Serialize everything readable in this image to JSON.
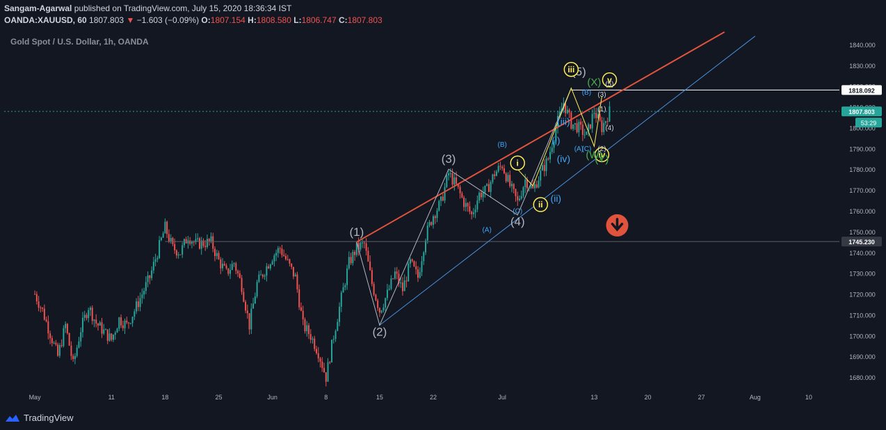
{
  "header": {
    "author": "Sangam-Agarwal",
    "published_text": "published on TradingView.com, July 15, 2020 18:36:34 IST",
    "symbol": "OANDA:XAUUSD, 60",
    "last": "1807.803",
    "change": "−1.603 (−0.09%)",
    "o_label": "O:",
    "o": "1807.154",
    "h_label": "H:",
    "h": "1808.580",
    "l_label": "L:",
    "l": "1806.747",
    "c_label": "C:",
    "c": "1807.803"
  },
  "subtitle": "Gold Spot / U.S. Dollar, 1h, OANDA",
  "brand": "TradingView",
  "colors": {
    "background": "#131722",
    "up": "#26a69a",
    "down": "#ef5350",
    "resistance": "#e0533d",
    "support": "#4a90d9",
    "wave_yellow": "#ffee58",
    "wave_blue": "#42a5f5",
    "wave_green": "#4caf50",
    "wave_gray": "#b2b5be"
  },
  "chart_data": {
    "type": "candlestick",
    "title": "Gold Spot / U.S. Dollar, 1h, OANDA",
    "y_ticks": [
      "1680.000",
      "1690.000",
      "1700.000",
      "1710.000",
      "1720.000",
      "1730.000",
      "1740.000",
      "1750.000",
      "1760.000",
      "1770.000",
      "1780.000",
      "1790.000",
      "1800.000",
      "1810.000",
      "1820.000",
      "1830.000",
      "1840.000"
    ],
    "ylim": [
      1674,
      1848
    ],
    "x_ticks": [
      {
        "label": "May",
        "date": "2020-05-01"
      },
      {
        "label": "11",
        "date": "2020-05-11"
      },
      {
        "label": "18",
        "date": "2020-05-18"
      },
      {
        "label": "25",
        "date": "2020-05-25"
      },
      {
        "label": "Jun",
        "date": "2020-06-01"
      },
      {
        "label": "8",
        "date": "2020-06-08"
      },
      {
        "label": "15",
        "date": "2020-06-15"
      },
      {
        "label": "22",
        "date": "2020-06-22"
      },
      {
        "label": "Jul",
        "date": "2020-07-01"
      },
      {
        "label": "13",
        "date": "2020-07-13"
      },
      {
        "label": "20",
        "date": "2020-07-20"
      },
      {
        "label": "27",
        "date": "2020-07-27"
      },
      {
        "label": "Aug",
        "date": "2020-08-03"
      },
      {
        "label": "10",
        "date": "2020-08-10"
      }
    ],
    "price_path": [
      [
        "2020-05-01",
        1720
      ],
      [
        "2020-05-02",
        1712
      ],
      [
        "2020-05-04",
        1690
      ],
      [
        "2020-05-05",
        1705
      ],
      [
        "2020-05-06",
        1686
      ],
      [
        "2020-05-07",
        1703
      ],
      [
        "2020-05-08",
        1714
      ],
      [
        "2020-05-09",
        1706
      ],
      [
        "2020-05-11",
        1698
      ],
      [
        "2020-05-12",
        1708
      ],
      [
        "2020-05-13",
        1705
      ],
      [
        "2020-05-14",
        1712
      ],
      [
        "2020-05-15",
        1720
      ],
      [
        "2020-05-16",
        1728
      ],
      [
        "2020-05-18",
        1752
      ],
      [
        "2020-05-19",
        1742
      ],
      [
        "2020-05-20",
        1740
      ],
      [
        "2020-05-21",
        1748
      ],
      [
        "2020-05-22",
        1744
      ],
      [
        "2020-05-24",
        1745
      ],
      [
        "2020-05-25",
        1736
      ],
      [
        "2020-05-26",
        1730
      ],
      [
        "2020-05-27",
        1735
      ],
      [
        "2020-05-28",
        1724
      ],
      [
        "2020-05-29",
        1705
      ],
      [
        "2020-05-30",
        1725
      ],
      [
        "2020-06-01",
        1738
      ],
      [
        "2020-06-02",
        1742
      ],
      [
        "2020-06-03",
        1735
      ],
      [
        "2020-06-04",
        1728
      ],
      [
        "2020-06-05",
        1705
      ],
      [
        "2020-06-06",
        1700
      ],
      [
        "2020-06-07",
        1692
      ],
      [
        "2020-06-08",
        1680
      ],
      [
        "2020-06-09",
        1700
      ],
      [
        "2020-06-10",
        1718
      ],
      [
        "2020-06-11",
        1735
      ],
      [
        "2020-06-12",
        1742
      ],
      [
        "2020-06-13",
        1744
      ],
      [
        "2020-06-14",
        1725
      ],
      [
        "2020-06-15",
        1712
      ],
      [
        "2020-06-16",
        1720
      ],
      [
        "2020-06-17",
        1730
      ],
      [
        "2020-06-18",
        1722
      ],
      [
        "2020-06-19",
        1735
      ],
      [
        "2020-06-20",
        1728
      ],
      [
        "2020-06-21",
        1748
      ],
      [
        "2020-06-22",
        1758
      ],
      [
        "2020-06-23",
        1764
      ],
      [
        "2020-06-24",
        1778
      ],
      [
        "2020-06-25",
        1772
      ],
      [
        "2020-06-26",
        1764
      ],
      [
        "2020-06-27",
        1758
      ],
      [
        "2020-06-28",
        1768
      ],
      [
        "2020-06-29",
        1770
      ],
      [
        "2020-06-30",
        1778
      ],
      [
        "2020-07-01",
        1782
      ],
      [
        "2020-07-02",
        1772
      ],
      [
        "2020-07-03",
        1764
      ],
      [
        "2020-07-04",
        1775
      ],
      [
        "2020-07-05",
        1770
      ],
      [
        "2020-07-06",
        1778
      ],
      [
        "2020-07-07",
        1785
      ],
      [
        "2020-07-08",
        1800
      ],
      [
        "2020-07-09",
        1812
      ],
      [
        "2020-07-10",
        1802
      ],
      [
        "2020-07-11",
        1800
      ],
      [
        "2020-07-12",
        1796
      ],
      [
        "2020-07-13",
        1808
      ],
      [
        "2020-07-14",
        1800
      ],
      [
        "2020-07-15",
        1807.8
      ]
    ],
    "horizontal_levels": [
      {
        "label": "1818.092",
        "value": 1818.092
      },
      {
        "label": "1807.803",
        "value": 1807.803
      },
      {
        "label": "1745.230",
        "value": 1745.23
      }
    ],
    "countdown": "53:29",
    "lines": [
      {
        "name": "resistance",
        "from": [
          "2020-06-12",
          1745
        ],
        "to": [
          "2020-07-30",
          1846
        ]
      },
      {
        "name": "support",
        "from": [
          "2020-06-15",
          1705
        ],
        "to": [
          "2020-08-03",
          1844
        ]
      }
    ],
    "wave_paths": [
      {
        "color": "wave_gray",
        "points": [
          [
            "2020-06-12",
            1745
          ],
          [
            "2020-06-15",
            1705
          ],
          [
            "2020-06-24",
            1780
          ],
          [
            "2020-07-03",
            1758
          ],
          [
            "2020-07-10",
            1819
          ]
        ]
      },
      {
        "color": "wave_yellow",
        "points": [
          [
            "2020-07-03",
            1780
          ],
          [
            "2020-07-05",
            1772
          ],
          [
            "2020-07-10",
            1819
          ],
          [
            "2020-07-13",
            1791
          ],
          [
            "2020-07-14",
            1815
          ]
        ]
      }
    ],
    "wave_labels": [
      {
        "text": "(1)",
        "at": [
          "2020-06-12",
          1750
        ],
        "style": "gray"
      },
      {
        "text": "(2)",
        "at": [
          "2020-06-15",
          1702
        ],
        "style": "gray"
      },
      {
        "text": "(3)",
        "at": [
          "2020-06-24",
          1785
        ],
        "style": "gray"
      },
      {
        "text": "(4)",
        "at": [
          "2020-07-03",
          1755
        ],
        "style": "gray"
      },
      {
        "text": "(5)",
        "at": [
          "2020-07-11",
          1827
        ],
        "style": "gray"
      },
      {
        "text": "(A)",
        "at": [
          "2020-06-29",
          1751
        ],
        "style": "blue-small"
      },
      {
        "text": "(B)",
        "at": [
          "2020-07-01",
          1792
        ],
        "style": "blue-small"
      },
      {
        "text": "(C)",
        "at": [
          "2020-07-03",
          1760
        ],
        "style": "blue-small"
      },
      {
        "text": "i",
        "at": [
          "2020-07-03",
          1783
        ],
        "style": "yellow-circle"
      },
      {
        "text": "ii",
        "at": [
          "2020-07-06",
          1763
        ],
        "style": "yellow-circle"
      },
      {
        "text": "iii",
        "at": [
          "2020-07-10",
          1828
        ],
        "style": "yellow-circle"
      },
      {
        "text": "iv",
        "at": [
          "2020-07-14",
          1787
        ],
        "style": "yellow-circle"
      },
      {
        "text": "v",
        "at": [
          "2020-07-15",
          1823
        ],
        "style": "yellow-circle"
      },
      {
        "text": "(i)",
        "at": [
          "2020-07-08",
          1794
        ],
        "style": "blue"
      },
      {
        "text": "(ii)",
        "at": [
          "2020-07-08",
          1766
        ],
        "style": "blue"
      },
      {
        "text": "(iii)",
        "at": [
          "2020-07-09",
          1803
        ],
        "style": "blue"
      },
      {
        "text": "(iv)",
        "at": [
          "2020-07-09",
          1785
        ],
        "style": "blue"
      },
      {
        "text": "(B)",
        "at": [
          "2020-07-12",
          1817
        ],
        "style": "blue-small"
      },
      {
        "text": "(A)",
        "at": [
          "2020-07-11",
          1790
        ],
        "style": "blue-small"
      },
      {
        "text": "(C)",
        "at": [
          "2020-07-12",
          1790
        ],
        "style": "blue-small"
      },
      {
        "text": "(X)",
        "at": [
          "2020-07-13",
          1822
        ],
        "style": "green"
      },
      {
        "text": "(W)",
        "at": [
          "2020-07-13",
          1787
        ],
        "style": "green"
      },
      {
        "text": "(Y)",
        "at": [
          "2020-07-14",
          1785
        ],
        "style": "green"
      },
      {
        "text": "(3)",
        "at": [
          "2020-07-14",
          1816
        ],
        "style": "white-small"
      },
      {
        "text": "(1)",
        "at": [
          "2020-07-14",
          1809
        ],
        "style": "white-small"
      },
      {
        "text": "(5)",
        "at": [
          "2020-07-15",
          1821
        ],
        "style": "white-small"
      },
      {
        "text": "(4)",
        "at": [
          "2020-07-15",
          1800
        ],
        "style": "white-small"
      },
      {
        "text": "(2)",
        "at": [
          "2020-07-14",
          1790
        ],
        "style": "white-small"
      }
    ],
    "annotation": {
      "icon": "down-arrow-icon",
      "at": [
        "2020-07-16",
        1753
      ]
    }
  }
}
